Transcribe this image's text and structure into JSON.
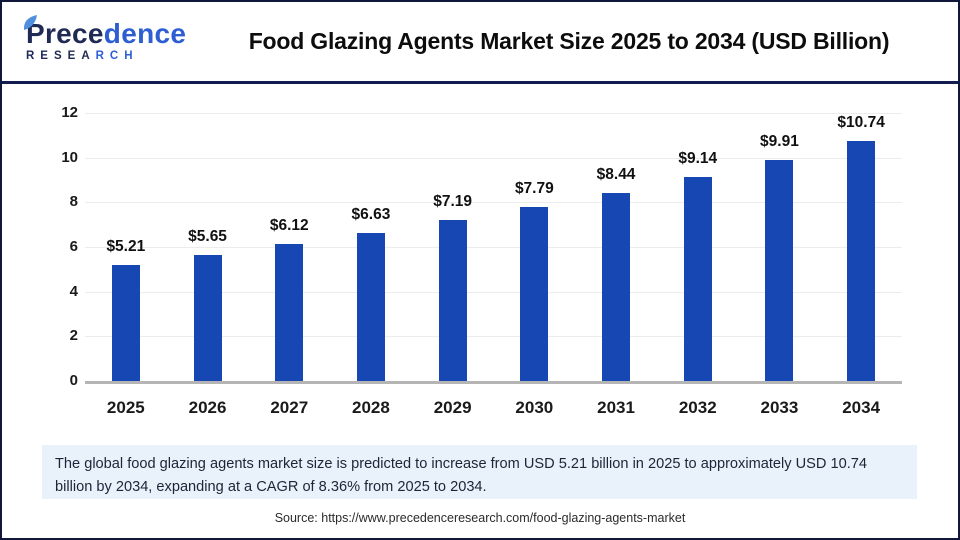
{
  "header": {
    "logo": {
      "name_dark": "Prece",
      "name_light": "dence",
      "sub_dark": "RESEA",
      "sub_light": "RCH"
    },
    "title": "Food Glazing Agents Market Size 2025 to 2034 (USD Billion)"
  },
  "chart_data": {
    "type": "bar",
    "title": "Food Glazing Agents Market Size 2025 to 2034 (USD Billion)",
    "categories": [
      "2025",
      "2026",
      "2027",
      "2028",
      "2029",
      "2030",
      "2031",
      "2032",
      "2033",
      "2034"
    ],
    "values": [
      5.21,
      5.65,
      6.12,
      6.63,
      7.19,
      7.79,
      8.44,
      9.14,
      9.91,
      10.74
    ],
    "value_labels": [
      "$5.21",
      "$5.65",
      "$6.12",
      "$6.63",
      "$7.19",
      "$7.79",
      "$8.44",
      "$9.14",
      "$9.91",
      "$10.74"
    ],
    "xlabel": "",
    "ylabel": "",
    "ylim": [
      0,
      12
    ],
    "yticks": [
      0,
      2,
      4,
      6,
      8,
      10,
      12
    ],
    "grid": true,
    "legend": false,
    "bar_color": "#1747b3"
  },
  "footer": {
    "summary": "The global food glazing agents market size is predicted to increase from USD 5.21 billion in 2025 to approximately USD 10.74 billion by 2034, expanding at a CAGR of 8.36% from 2025 to 2034.",
    "source": "Source: https://www.precedenceresearch.com/food-glazing-agents-market"
  },
  "colors": {
    "bar": "#1747b3",
    "logo_navy": "#1f2a55",
    "logo_blue": "#2d5fd3",
    "gridline": "#ececec",
    "axis_line": "#b5b5b5",
    "summary_bg": "#e9f1fb",
    "page_border": "#10183a"
  }
}
